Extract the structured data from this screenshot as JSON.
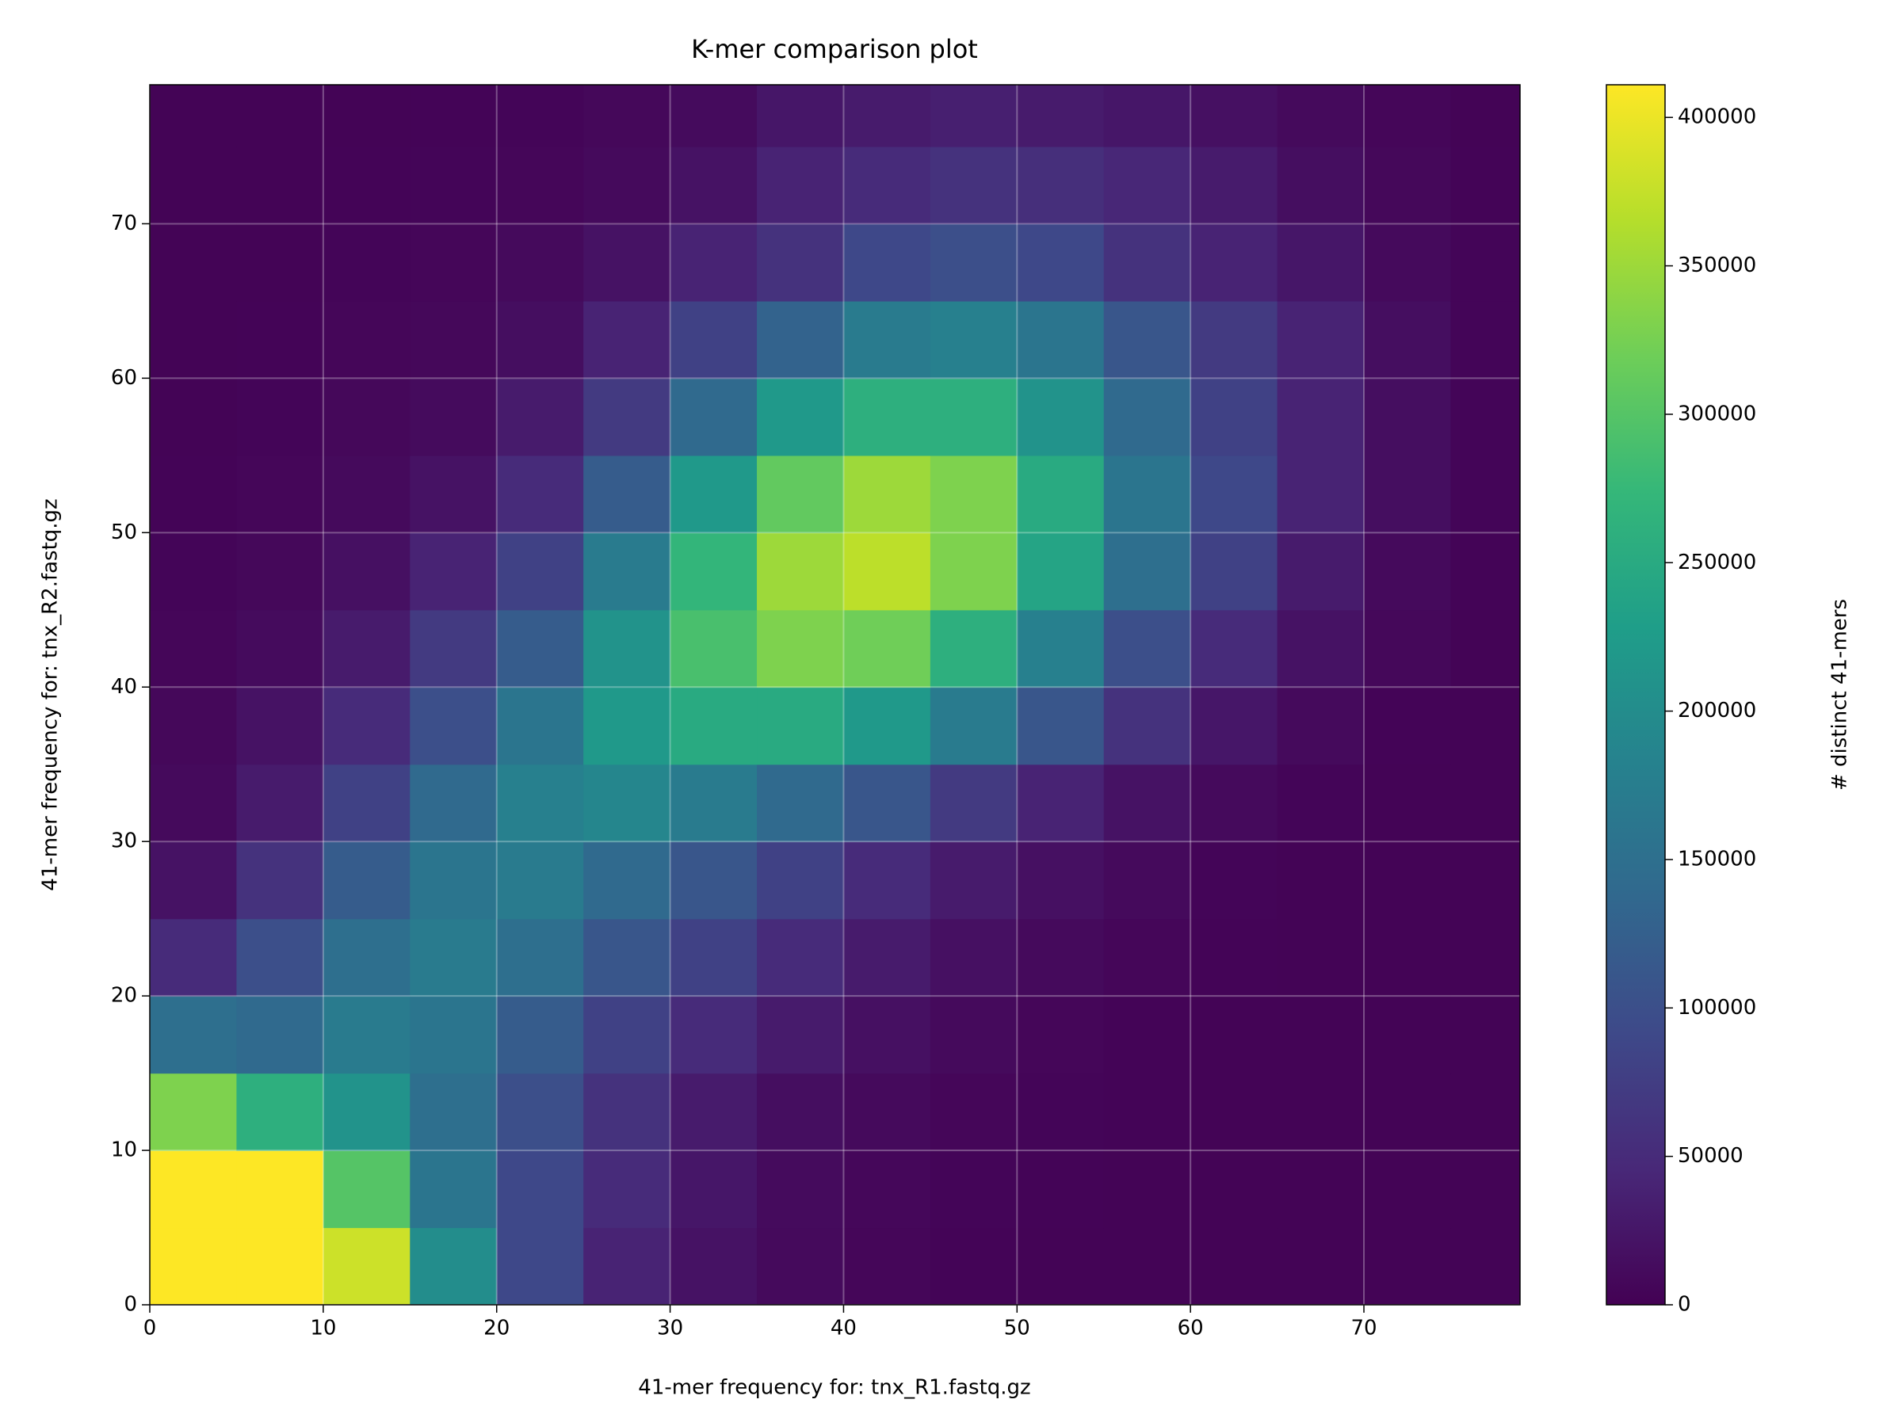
{
  "chart_data": {
    "type": "heatmap",
    "title": "K-mer comparison plot",
    "xlabel": "41-mer frequency for: tnx_R1.fastq.gz",
    "ylabel": "41-mer frequency for: tnx_R2.fastq.gz",
    "colorbar_label": "# distinct 41-mers",
    "colormap": "viridis",
    "grid": true,
    "xlim": [
      0,
      79
    ],
    "ylim": [
      0,
      79
    ],
    "xticks": [
      0,
      10,
      20,
      30,
      40,
      50,
      60,
      70
    ],
    "yticks": [
      0,
      10,
      20,
      30,
      40,
      50,
      60,
      70
    ],
    "clim": [
      0,
      411000
    ],
    "cticks": [
      0,
      50000,
      100000,
      150000,
      200000,
      250000,
      300000,
      350000,
      400000
    ],
    "x_bins": [
      0,
      5,
      10,
      15,
      20,
      25,
      30,
      35,
      40,
      45,
      50,
      55,
      60,
      65,
      70,
      75,
      80
    ],
    "y_bins": [
      0,
      5,
      10,
      15,
      20,
      25,
      30,
      35,
      40,
      45,
      50,
      55,
      60,
      65,
      70,
      75,
      80
    ],
    "values": [
      [
        411000,
        411000,
        380000,
        200000,
        90000,
        40000,
        20000,
        10000,
        6000,
        4000,
        3000,
        3000,
        3000,
        3000,
        3000,
        3000
      ],
      [
        411000,
        411000,
        300000,
        160000,
        90000,
        50000,
        25000,
        12000,
        7000,
        5000,
        4000,
        3000,
        3000,
        3000,
        3000,
        3000
      ],
      [
        330000,
        260000,
        210000,
        150000,
        100000,
        60000,
        30000,
        15000,
        10000,
        6000,
        5000,
        4000,
        3000,
        3000,
        3000,
        3000
      ],
      [
        150000,
        140000,
        170000,
        160000,
        120000,
        80000,
        50000,
        30000,
        18000,
        10000,
        6000,
        4000,
        3000,
        3000,
        3000,
        3000
      ],
      [
        50000,
        100000,
        150000,
        170000,
        150000,
        110000,
        80000,
        50000,
        30000,
        18000,
        10000,
        6000,
        4000,
        3000,
        3000,
        3000
      ],
      [
        20000,
        60000,
        120000,
        160000,
        170000,
        140000,
        110000,
        80000,
        50000,
        30000,
        18000,
        10000,
        5000,
        3000,
        3000,
        3000
      ],
      [
        10000,
        30000,
        80000,
        140000,
        180000,
        190000,
        170000,
        140000,
        110000,
        70000,
        40000,
        20000,
        10000,
        5000,
        3000,
        3000
      ],
      [
        8000,
        20000,
        50000,
        100000,
        160000,
        220000,
        250000,
        250000,
        220000,
        170000,
        110000,
        60000,
        25000,
        10000,
        4000,
        3000
      ],
      [
        6000,
        12000,
        30000,
        70000,
        120000,
        210000,
        290000,
        330000,
        320000,
        260000,
        180000,
        100000,
        50000,
        20000,
        8000,
        3000
      ],
      [
        5000,
        8000,
        18000,
        40000,
        80000,
        170000,
        270000,
        350000,
        370000,
        330000,
        240000,
        150000,
        80000,
        30000,
        10000,
        4000
      ],
      [
        4000,
        6000,
        10000,
        20000,
        50000,
        120000,
        220000,
        310000,
        350000,
        330000,
        250000,
        160000,
        90000,
        40000,
        15000,
        5000
      ],
      [
        3000,
        5000,
        8000,
        12000,
        30000,
        70000,
        140000,
        220000,
        260000,
        260000,
        210000,
        140000,
        80000,
        40000,
        15000,
        5000
      ],
      [
        3000,
        4000,
        6000,
        8000,
        15000,
        40000,
        80000,
        130000,
        170000,
        180000,
        160000,
        110000,
        70000,
        40000,
        15000,
        5000
      ],
      [
        3000,
        3000,
        5000,
        6000,
        10000,
        20000,
        40000,
        60000,
        90000,
        100000,
        90000,
        60000,
        40000,
        25000,
        10000,
        5000
      ],
      [
        3000,
        3000,
        4000,
        5000,
        6000,
        10000,
        20000,
        40000,
        50000,
        60000,
        55000,
        45000,
        30000,
        15000,
        8000,
        4000
      ],
      [
        3000,
        3000,
        3000,
        4000,
        5000,
        8000,
        12000,
        25000,
        30000,
        35000,
        30000,
        25000,
        18000,
        10000,
        6000,
        3000
      ]
    ]
  }
}
